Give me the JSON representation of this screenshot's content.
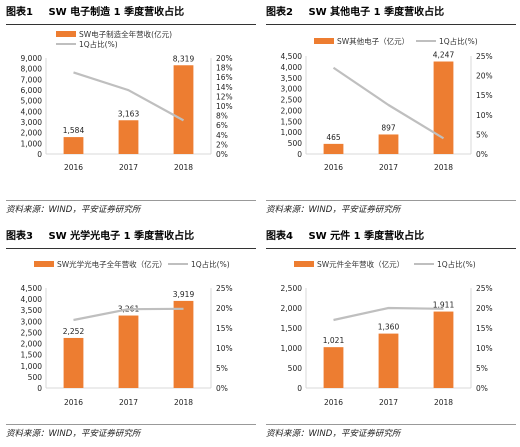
{
  "colors": {
    "bar": "#ED7D31",
    "line": "#BFBFBF",
    "axis": "#D9D9D9"
  },
  "panels": [
    {
      "id": "p1",
      "fig_label": "图表1",
      "title": "SW 电子制造 1 季度营收占比",
      "source": "资料来源：WIND，平安证券研究所"
    },
    {
      "id": "p2",
      "fig_label": "图表2",
      "title": "SW 其他电子 1 季度营收占比",
      "source": "资料来源：WIND，平安证券研究所"
    },
    {
      "id": "p3",
      "fig_label": "图表3",
      "title": "SW 光学光电子 1 季度营收占比",
      "source": "资料来源：WIND，平安证券研究所"
    },
    {
      "id": "p4",
      "fig_label": "图表4",
      "title": "SW 元件 1 季度营收占比",
      "source": "资料来源：WIND，平安证券研究所"
    }
  ],
  "chart_data": [
    {
      "type": "bar",
      "categories": [
        "2016",
        "2017",
        "2018"
      ],
      "series": [
        {
          "name": "SW电子制造全年营收(亿元)",
          "type": "bar",
          "axis": "left",
          "values": [
            1584,
            3163,
            8319
          ],
          "labels": [
            "1,584",
            "3,163",
            "8,319"
          ]
        },
        {
          "name": "1Q占比(%)",
          "type": "line",
          "axis": "right",
          "values": [
            17,
            13.3,
            7
          ]
        }
      ],
      "left_axis": {
        "min": 0,
        "max": 9000,
        "step": 1000,
        "ticks": [
          "0",
          "1,000",
          "2,000",
          "3,000",
          "4,000",
          "5,000",
          "6,000",
          "7,000",
          "8,000",
          "9,000"
        ]
      },
      "right_axis": {
        "min": 0,
        "max": 20,
        "step": 2,
        "ticks": [
          "0%",
          "2%",
          "4%",
          "6%",
          "8%",
          "10%",
          "12%",
          "14%",
          "16%",
          "18%",
          "20%"
        ]
      },
      "legend": "top"
    },
    {
      "type": "bar",
      "categories": [
        "2016",
        "2017",
        "2018"
      ],
      "series": [
        {
          "name": "SW其他电子（亿元）",
          "type": "bar",
          "axis": "left",
          "values": [
            465,
            897,
            4247
          ],
          "labels": [
            "465",
            "897",
            "4,247"
          ]
        },
        {
          "name": "1Q占比(%)",
          "type": "line",
          "axis": "right",
          "values": [
            22,
            12.5,
            4
          ]
        }
      ],
      "left_axis": {
        "min": 0,
        "max": 4500,
        "step": 500,
        "ticks": [
          "0",
          "500",
          "1,000",
          "1,500",
          "2,000",
          "2,500",
          "3,000",
          "3,500",
          "4,000",
          "4,500"
        ]
      },
      "right_axis": {
        "min": 0,
        "max": 25,
        "step": 5,
        "ticks": [
          "0%",
          "5%",
          "10%",
          "15%",
          "20%",
          "25%"
        ]
      },
      "legend": "top"
    },
    {
      "type": "bar",
      "categories": [
        "2016",
        "2017",
        "2018"
      ],
      "series": [
        {
          "name": "SW光学光电子全年营收（亿元）",
          "type": "bar",
          "axis": "left",
          "values": [
            2252,
            3261,
            3919
          ],
          "labels": [
            "2,252",
            "3,261",
            "3,919"
          ]
        },
        {
          "name": "1Q占比(%)",
          "type": "line",
          "axis": "right",
          "values": [
            17,
            19.7,
            19.8
          ]
        }
      ],
      "left_axis": {
        "min": 0,
        "max": 4500,
        "step": 500,
        "ticks": [
          "0",
          "500",
          "1,000",
          "1,500",
          "2,000",
          "2,500",
          "3,000",
          "3,500",
          "4,000",
          "4,500"
        ]
      },
      "right_axis": {
        "min": 0,
        "max": 25,
        "step": 5,
        "ticks": [
          "0%",
          "5%",
          "10%",
          "15%",
          "20%",
          "25%"
        ]
      },
      "legend": "top"
    },
    {
      "type": "bar",
      "categories": [
        "2016",
        "2017",
        "2018"
      ],
      "series": [
        {
          "name": "SW元件全年营收（亿元）",
          "type": "bar",
          "axis": "left",
          "values": [
            1021,
            1360,
            1911
          ],
          "labels": [
            "1,021",
            "1,360",
            "1,911"
          ]
        },
        {
          "name": "1Q占比(%)",
          "type": "line",
          "axis": "right",
          "values": [
            17,
            20,
            19.8
          ]
        }
      ],
      "left_axis": {
        "min": 0,
        "max": 2500,
        "step": 500,
        "ticks": [
          "0",
          "500",
          "1,000",
          "1,500",
          "2,000",
          "2,500"
        ]
      },
      "right_axis": {
        "min": 0,
        "max": 25,
        "step": 5,
        "ticks": [
          "0%",
          "5%",
          "10%",
          "15%",
          "20%",
          "25%"
        ]
      },
      "legend": "top"
    }
  ]
}
